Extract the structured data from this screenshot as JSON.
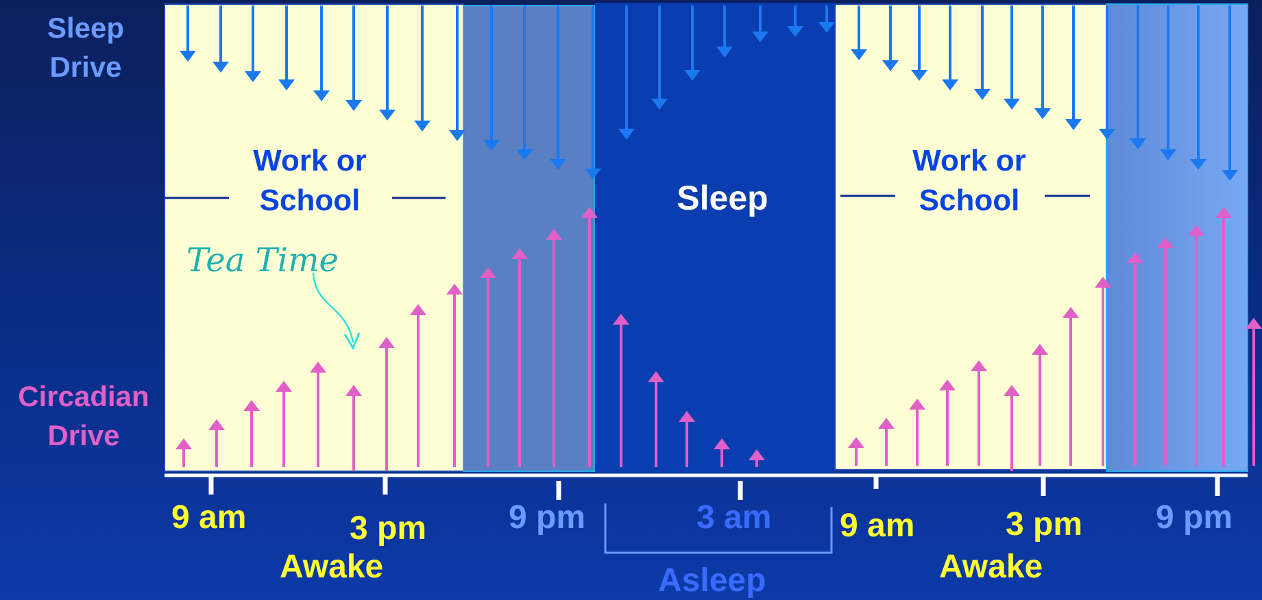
{
  "labels": {
    "sleep_drive": "Sleep Drive",
    "circadian_drive": "Circadian Drive",
    "work_or_school_1": [
      "Work or",
      "School"
    ],
    "work_or_school_2": [
      "Work or",
      "School"
    ],
    "sleep": "Sleep",
    "tea_time": "Tea Time",
    "awake_1": "Awake",
    "awake_2": "Awake",
    "asleep": "Asleep"
  },
  "time_axis": [
    {
      "label": "9 am",
      "color": "#ffff33"
    },
    {
      "label": "3 pm",
      "color": "#ffff33"
    },
    {
      "label": "9 pm",
      "color": "#6b9bff"
    },
    {
      "label": "3 am",
      "color": "#3a6bff"
    },
    {
      "label": "9 am",
      "color": "#ffff33"
    },
    {
      "label": "3 pm",
      "color": "#ffff33"
    },
    {
      "label": "9 pm",
      "color": "#6b9bff"
    }
  ],
  "colors": {
    "background": "#0b2472",
    "awake_panel": "#ffffd6",
    "evening_panel": "#5a80c4",
    "evening_panel_2": "#6c9ce6",
    "sleep_panel": "#0a3db0",
    "sleep_drive": "#1a78f0",
    "circadian_drive": "#e060c8",
    "sleep_drive_label": "#6a9bff",
    "circadian_label": "#e060c8",
    "work_text": "#0a44e0",
    "tea_time": "#20b0b0",
    "awake_text": "#ffff33",
    "asleep_text": "#3a6bff"
  },
  "icons": {
    "sleep_drive_arrows": "arrow-down-icon",
    "circadian_drive_arrows": "arrow-up-icon",
    "tea_time_pointer": "curved-arrow-icon"
  }
}
